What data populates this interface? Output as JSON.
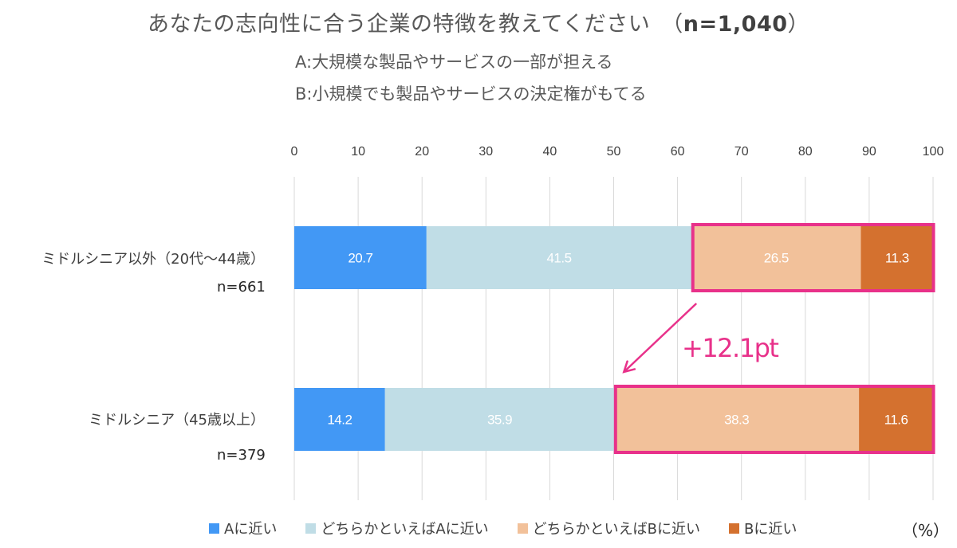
{
  "title": {
    "main": "あなたの志向性に合う企業の特徴を教えてください",
    "n_prefix": "（",
    "n_value": "n=1,040",
    "n_suffix": "）"
  },
  "subtitles": {
    "a": "A:大規模な製品やサービスの一部が担える",
    "b": "B:小規模でも製品やサービスの決定権がもてる"
  },
  "annotation": {
    "difference": "+12.1pt"
  },
  "unit_label": "（%）",
  "colors": {
    "a_close": "#4298F5",
    "rather_a": "#C0DDE6",
    "rather_b": "#F2C19A",
    "b_close": "#D4712F",
    "highlight": "#E8318A",
    "grid": "#D9D9D9"
  },
  "chart_data": {
    "type": "bar",
    "orientation": "horizontal",
    "stacked": true,
    "xlim": [
      0,
      100
    ],
    "x_ticks": [
      0,
      10,
      20,
      30,
      40,
      50,
      60,
      70,
      80,
      90,
      100
    ],
    "x_tick_labels": [
      "0",
      "10",
      "20",
      "30",
      "40",
      "50",
      "60",
      "70",
      "80",
      "90",
      "100"
    ],
    "tick_position": "top",
    "grid": true,
    "legend_position": "bottom",
    "categories": [
      {
        "label": "ミドルシニア以外（20代〜44歳）",
        "n": "n=661"
      },
      {
        "label": "ミドルシニア（45歳以上）",
        "n": "n=379"
      }
    ],
    "series": [
      {
        "name": "Aに近い",
        "values": [
          20.7,
          14.2
        ]
      },
      {
        "name": "どちらかといえばAに近い",
        "values": [
          41.5,
          35.9
        ]
      },
      {
        "name": "どちらかといえばBに近い",
        "values": [
          26.5,
          38.3
        ]
      },
      {
        "name": "Bに近い",
        "values": [
          11.3,
          11.6
        ]
      }
    ]
  }
}
